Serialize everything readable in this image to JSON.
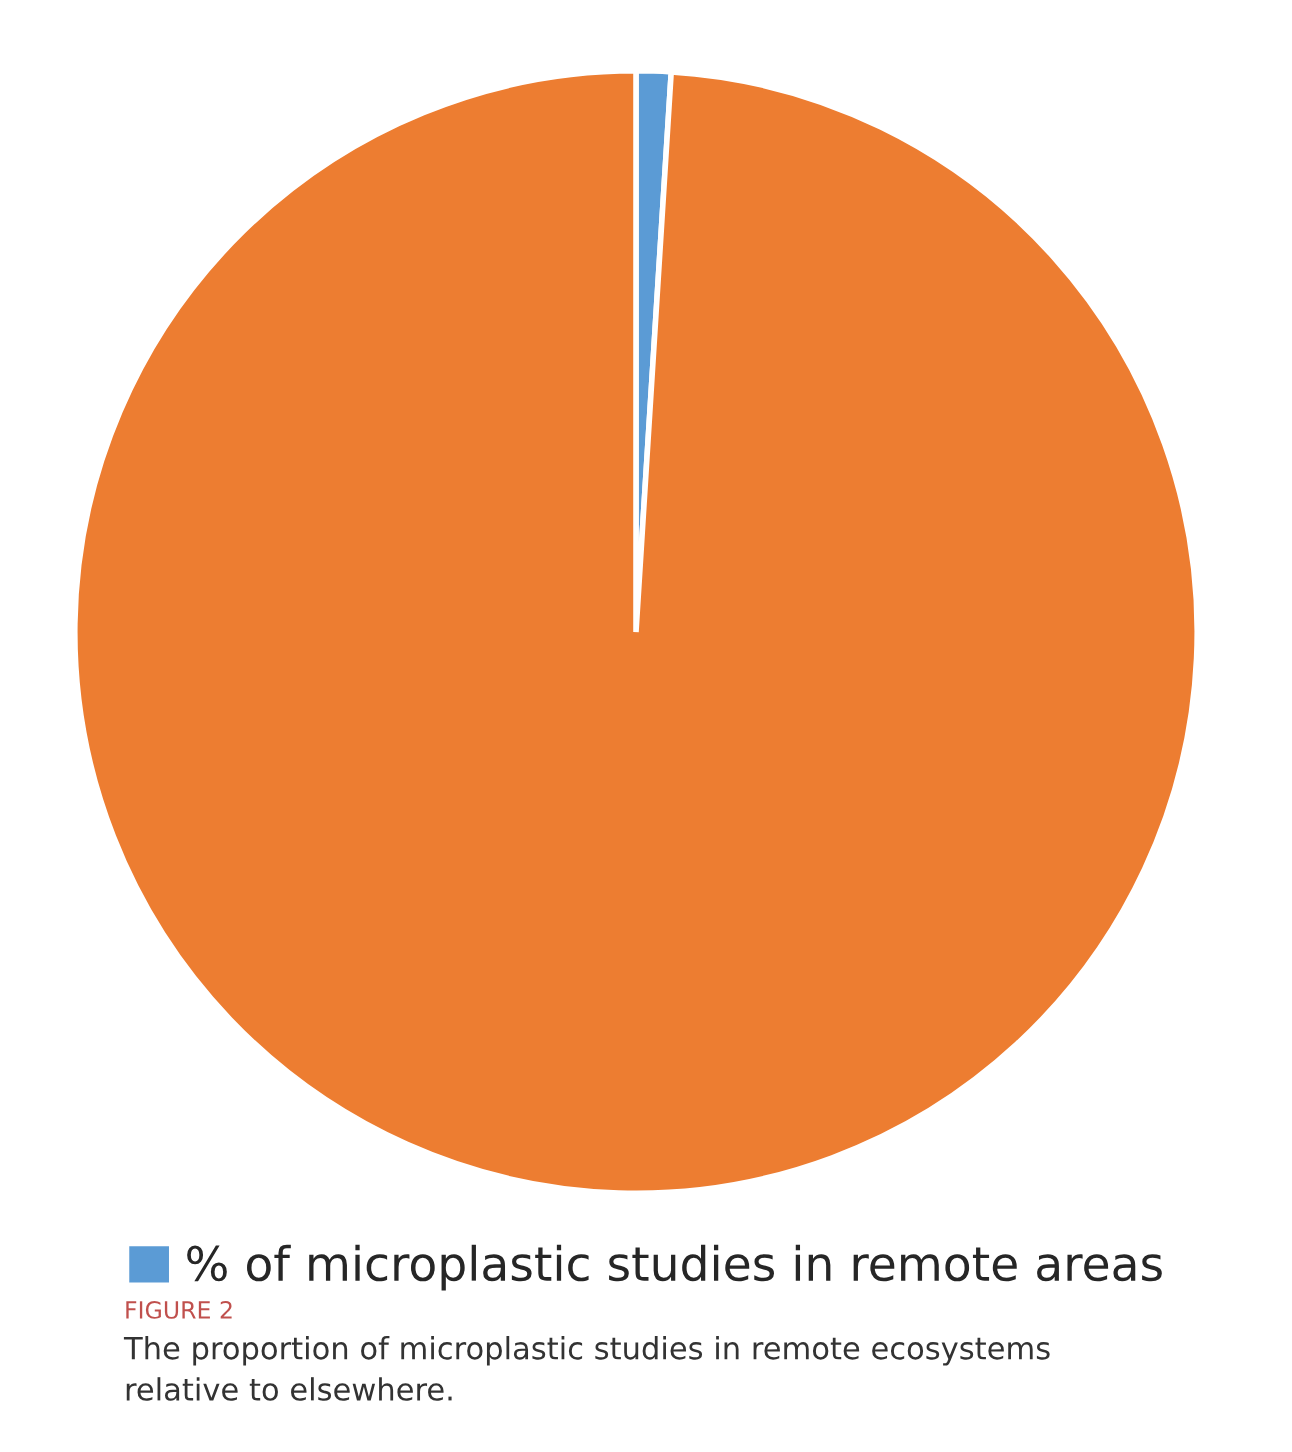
{
  "chart_data": {
    "type": "pie",
    "categories": [
      "% of microplastic studies in remote areas",
      null
    ],
    "values": [
      1,
      99
    ],
    "colors": [
      "#5b9bd5",
      "#ed7d31"
    ],
    "legend": "bottom",
    "annotations": [
      "FIGURE 2",
      "The proportion of microplastic studies in remote ecosystems relative to elsewhere."
    ]
  }
}
